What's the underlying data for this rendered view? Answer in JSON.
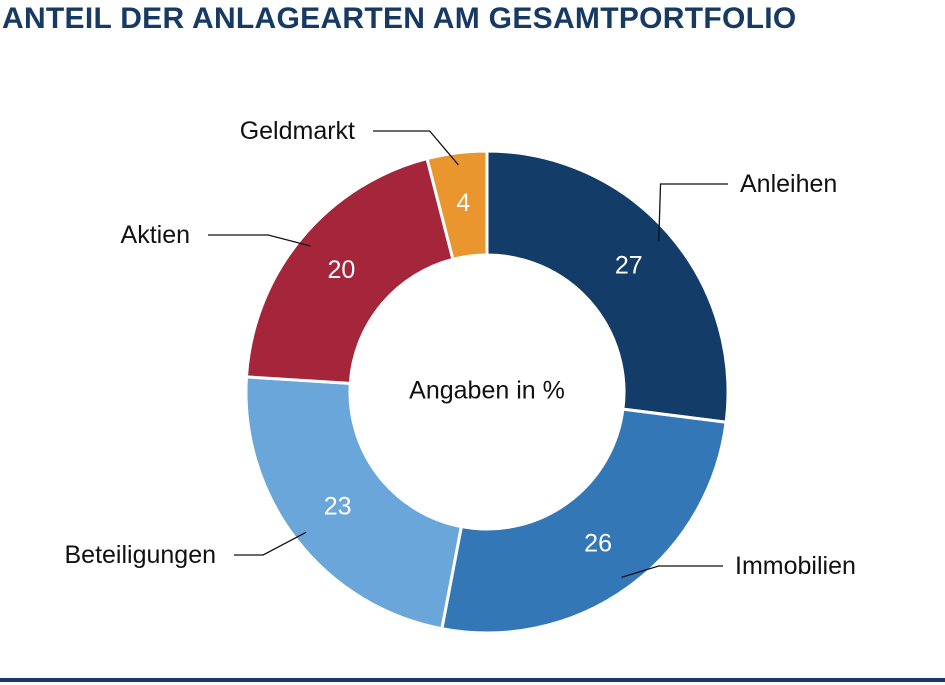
{
  "title": "ANTEIL DER ANLAGEARTEN AM GESAMTPORTFOLIO",
  "chart_data": {
    "type": "donut",
    "center_label": "Angaben in %",
    "slices": [
      {
        "label": "Anleihen",
        "value": 27,
        "color": "#133c68"
      },
      {
        "label": "Immobilien",
        "value": 26,
        "color": "#3377b6"
      },
      {
        "label": "Beteiligungen",
        "value": 23,
        "color": "#6aa6da"
      },
      {
        "label": "Aktien",
        "value": 20,
        "color": "#a5263b"
      },
      {
        "label": "Geldmarkt",
        "value": 4,
        "color": "#e9962e"
      }
    ]
  },
  "colors": {
    "accent": "#163a63"
  }
}
